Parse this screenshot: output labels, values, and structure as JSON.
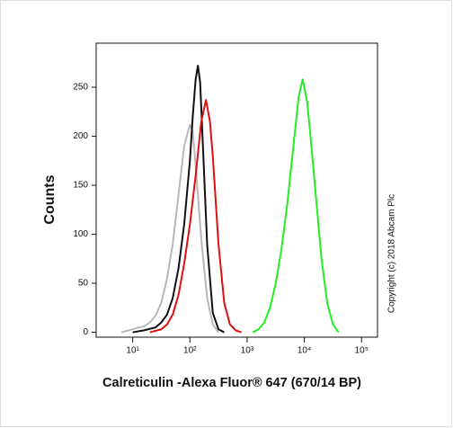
{
  "chart_data": {
    "type": "line",
    "x_label": "Calreticulin -Alexa Fluor® 647 (670/14 BP)",
    "y_label": "Counts",
    "annotation": "Copyright (c) 2018 Abcam Plc",
    "x_scale": "log",
    "xlim": [
      2.3,
      190000
    ],
    "ylim": [
      -5,
      295
    ],
    "xticks": [
      {
        "value": 10,
        "label": "10¹"
      },
      {
        "value": 100,
        "label": "10²"
      },
      {
        "value": 1000,
        "label": "10³"
      },
      {
        "value": 10000,
        "label": "10⁴"
      },
      {
        "value": 100000,
        "label": "10⁵"
      }
    ],
    "yticks": [
      0,
      50,
      100,
      150,
      200,
      250
    ],
    "series": [
      {
        "color": "#b8b8b8",
        "x": [
          6.3,
          10,
          12.6,
          15.8,
          20,
          25.1,
          31.6,
          39.8,
          50.1,
          63.1,
          79.4,
          100,
          112,
          126,
          158,
          200,
          251,
          316
        ],
        "values": [
          0,
          3,
          5,
          6,
          10,
          17,
          30,
          55,
          90,
          140,
          190,
          212,
          205,
          170,
          95,
          35,
          8,
          0
        ]
      },
      {
        "color": "#111111",
        "x": [
          10,
          15.8,
          25.1,
          31.6,
          39.8,
          50.1,
          63.1,
          79.4,
          100,
          112,
          126,
          138,
          151,
          166,
          200,
          251,
          316,
          398
        ],
        "values": [
          0,
          2,
          5,
          10,
          18,
          35,
          65,
          110,
          175,
          220,
          258,
          272,
          255,
          200,
          90,
          20,
          3,
          0
        ]
      },
      {
        "color": "#e01010",
        "x": [
          20,
          31.6,
          39.8,
          50.1,
          63.1,
          79.4,
          100,
          126,
          158,
          191,
          224,
          251,
          316,
          398,
          501,
          631,
          794
        ],
        "values": [
          0,
          3,
          8,
          18,
          38,
          70,
          110,
          160,
          215,
          237,
          215,
          180,
          90,
          30,
          8,
          2,
          0
        ]
      },
      {
        "color": "#22ee22",
        "x": [
          1259,
          1585,
          1995,
          2512,
          3162,
          3981,
          5012,
          6310,
          7943,
          9333,
          11220,
          12589,
          15849,
          19953,
          25119,
          31623,
          39811
        ],
        "values": [
          0,
          3,
          10,
          25,
          50,
          85,
          130,
          185,
          240,
          258,
          235,
          205,
          140,
          75,
          30,
          8,
          0
        ]
      }
    ]
  }
}
